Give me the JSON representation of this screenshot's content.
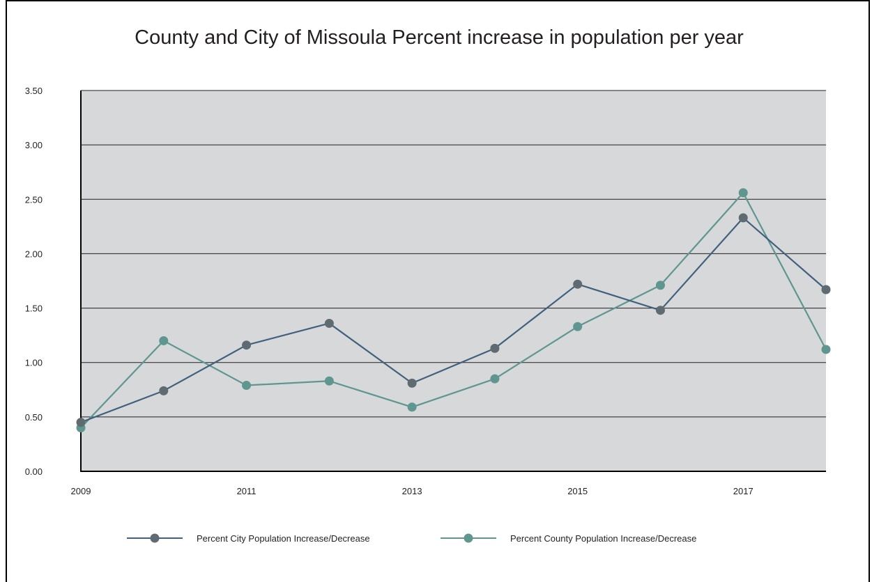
{
  "chart_data": {
    "type": "line",
    "title": "County and City of Missoula Percent increase in population per year",
    "xlabel": "",
    "ylabel": "",
    "x": [
      2009,
      2010,
      2011,
      2012,
      2013,
      2014,
      2015,
      2016,
      2017,
      2018
    ],
    "x_tick_labels": [
      "2009",
      "2011",
      "2013",
      "2015",
      "2017"
    ],
    "y_tick_labels": [
      "0.00",
      "0.50",
      "1.00",
      "1.50",
      "2.00",
      "2.50",
      "3.00",
      "3.50"
    ],
    "ylim": [
      0,
      3.5
    ],
    "grid": true,
    "legend_position": "bottom",
    "series": [
      {
        "name": "Percent City Population Increase/Decrease",
        "values": [
          0.45,
          0.74,
          1.16,
          1.36,
          0.81,
          1.13,
          1.72,
          1.48,
          2.33,
          1.67
        ],
        "line_color": "#40607e",
        "marker_color": "#5f6b70"
      },
      {
        "name": "Percent County Population Increase/Decrease",
        "values": [
          0.4,
          1.2,
          0.79,
          0.83,
          0.59,
          0.85,
          1.33,
          1.71,
          2.56,
          1.12
        ],
        "line_color": "#5f9690",
        "marker_color": "#5f9690"
      }
    ],
    "colors": {
      "plot_background": "#d7d8da",
      "gridline": "#231f20",
      "axis": "#000000"
    }
  }
}
